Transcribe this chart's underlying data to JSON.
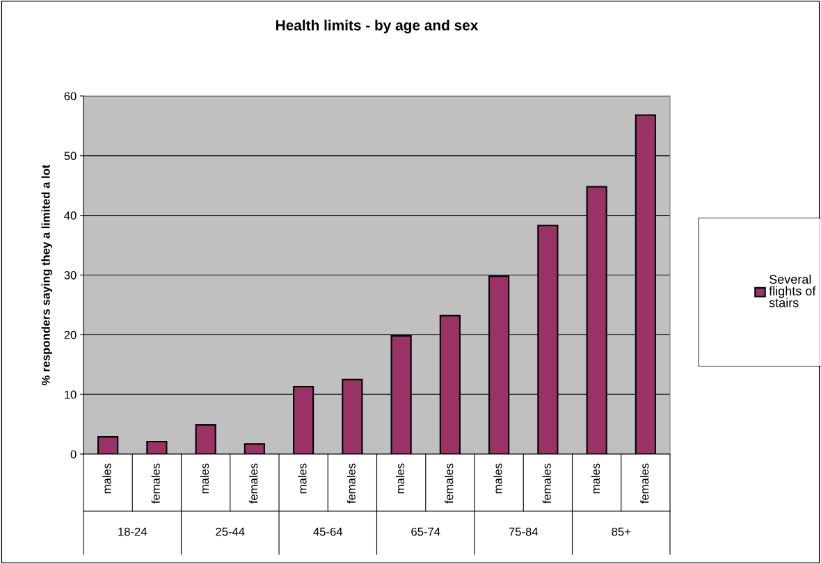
{
  "chart_data": {
    "type": "bar",
    "title": "Health limits - by age and sex",
    "ylabel": "% responders saying they a limited a lot",
    "categories": [
      "males",
      "females",
      "males",
      "females",
      "males",
      "females",
      "males",
      "females",
      "males",
      "females",
      "males",
      "females"
    ],
    "series": [
      {
        "name": "Several\nflights of\nstairs",
        "color": "#993366",
        "values": [
          2.9,
          2.1,
          4.9,
          1.7,
          11.3,
          12.5,
          19.8,
          23.2,
          29.8,
          38.3,
          44.8,
          56.8
        ]
      }
    ],
    "annotations": [
      "18-24",
      "25-44",
      "45-64",
      "65-74",
      "75-84",
      "85+"
    ],
    "ylim": [
      0,
      60
    ],
    "yticks": [
      0,
      10,
      20,
      30,
      40,
      50,
      60
    ],
    "grid": "y",
    "legend": "right"
  }
}
